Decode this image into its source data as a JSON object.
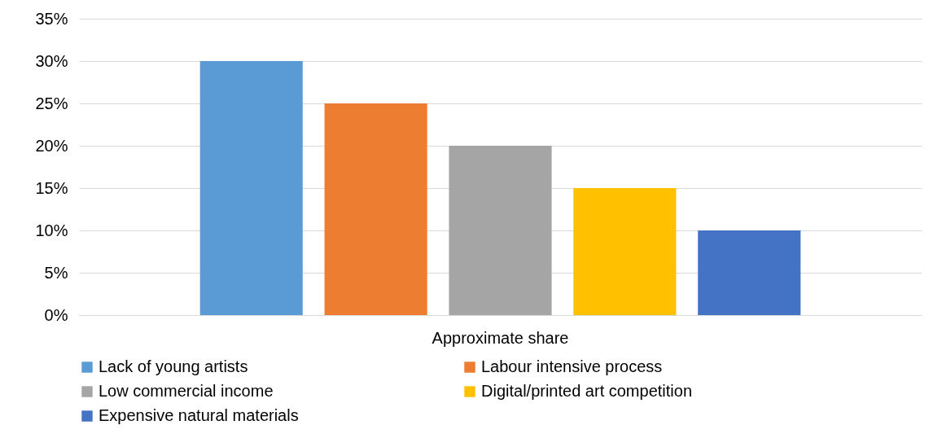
{
  "chart_data": {
    "type": "bar",
    "categories": [
      "Approximate share"
    ],
    "series": [
      {
        "name": "Lack of young artists",
        "color": "#5b9bd5",
        "values": [
          30
        ]
      },
      {
        "name": "Labour intensive process",
        "color": "#ed7d31",
        "values": [
          25
        ]
      },
      {
        "name": "Low commercial income",
        "color": "#a5a5a5",
        "values": [
          20
        ]
      },
      {
        "name": "Digital/printed art competition",
        "color": "#ffc000",
        "values": [
          15
        ]
      },
      {
        "name": "Expensive natural materials",
        "color": "#4472c4",
        "values": [
          10
        ]
      }
    ],
    "ylim": [
      0,
      35
    ],
    "yticks": [
      {
        "value": 0,
        "label": "0%"
      },
      {
        "value": 5,
        "label": "5%"
      },
      {
        "value": 10,
        "label": "10%"
      },
      {
        "value": 15,
        "label": "15%"
      },
      {
        "value": 20,
        "label": "20%"
      },
      {
        "value": 25,
        "label": "25%"
      },
      {
        "value": 30,
        "label": "30%"
      },
      {
        "value": 35,
        "label": "35%"
      }
    ],
    "grid": "y",
    "legend": "bottom"
  }
}
